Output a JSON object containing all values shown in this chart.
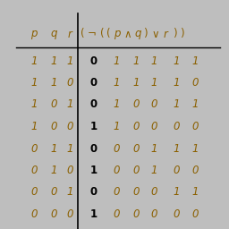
{
  "bg_color": "#bebebe",
  "italic_color": "#8B6000",
  "bold_color": "#000000",
  "header_left": [
    "p",
    "q",
    "r"
  ],
  "header_right_chars": [
    "(",
    "¬",
    "(",
    "(",
    "p",
    "∧",
    "q",
    ")",
    "∨",
    "r",
    ")",
    ")"
  ],
  "header_right_italic": [
    false,
    false,
    false,
    false,
    true,
    false,
    true,
    false,
    false,
    true,
    false,
    false
  ],
  "rows": [
    {
      "pqr": [
        1,
        1,
        1
      ],
      "result": 0,
      "sub": [
        1,
        1,
        1,
        1,
        1
      ]
    },
    {
      "pqr": [
        1,
        1,
        0
      ],
      "result": 0,
      "sub": [
        1,
        1,
        1,
        1,
        0
      ]
    },
    {
      "pqr": [
        1,
        0,
        1
      ],
      "result": 0,
      "sub": [
        1,
        0,
        0,
        1,
        1
      ]
    },
    {
      "pqr": [
        1,
        0,
        0
      ],
      "result": 1,
      "sub": [
        1,
        0,
        0,
        0,
        0
      ]
    },
    {
      "pqr": [
        0,
        1,
        1
      ],
      "result": 0,
      "sub": [
        0,
        0,
        1,
        1,
        1
      ]
    },
    {
      "pqr": [
        0,
        1,
        0
      ],
      "result": 1,
      "sub": [
        0,
        0,
        1,
        0,
        0
      ]
    },
    {
      "pqr": [
        0,
        0,
        1
      ],
      "result": 0,
      "sub": [
        0,
        0,
        0,
        1,
        1
      ]
    },
    {
      "pqr": [
        0,
        0,
        0
      ],
      "result": 1,
      "sub": [
        0,
        0,
        0,
        0,
        0
      ]
    }
  ]
}
